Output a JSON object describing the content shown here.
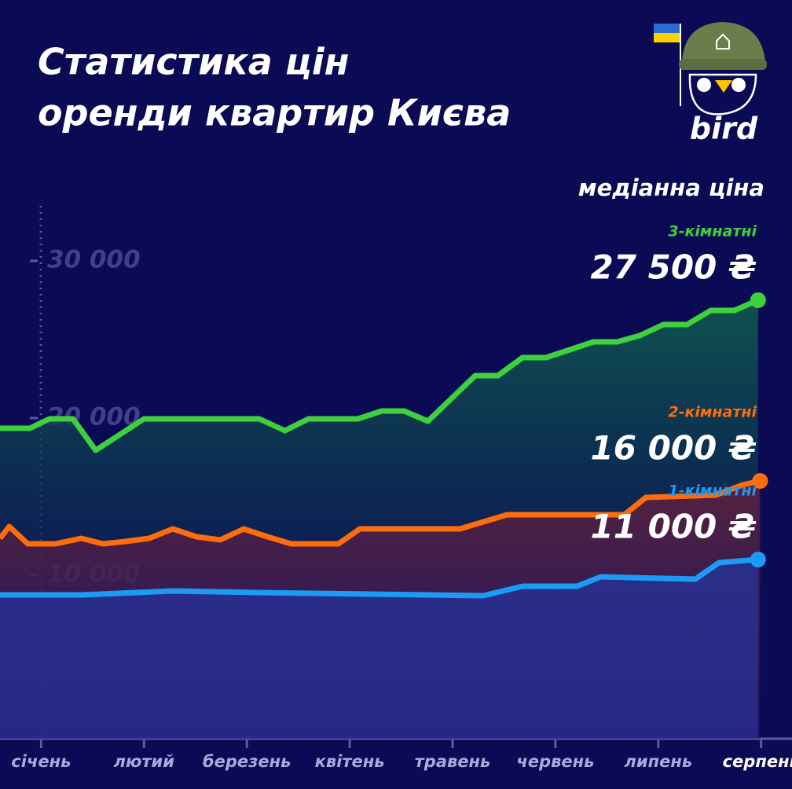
{
  "chart_data": {
    "type": "area-line",
    "title": [
      "Статистика цін",
      "оренди квартир Києва"
    ],
    "subtitle": "медіанна ціна",
    "logo": "bird",
    "xlim": [
      -0.4,
      7.3
    ],
    "xticks": [
      {
        "value": 0,
        "label": "січень"
      },
      {
        "value": 1,
        "label": "лютий"
      },
      {
        "value": 2,
        "label": "березень"
      },
      {
        "value": 3,
        "label": "квітень"
      },
      {
        "value": 4,
        "label": "травень"
      },
      {
        "value": 5,
        "label": "червень"
      },
      {
        "value": 6,
        "label": "липень"
      },
      {
        "value": 7,
        "label": "серпень"
      }
    ],
    "ylim": [
      -400,
      33500
    ],
    "yticks": [
      {
        "value": 10000,
        "label": "10 000"
      },
      {
        "value": 20000,
        "label": "20 000"
      },
      {
        "value": 30000,
        "label": "30 000"
      }
    ],
    "series": [
      {
        "name": "3-кімнатні",
        "color": "#3fd13c",
        "x": [
          -0.4,
          -0.11,
          0.08,
          0.31,
          0.53,
          1.0,
          2.12,
          2.37,
          2.6,
          3.08,
          3.31,
          3.53,
          3.76,
          4.22,
          4.44,
          4.68,
          4.91,
          5.37,
          5.6,
          5.82,
          6.05,
          6.28,
          6.51,
          6.74,
          6.97
        ],
        "values": [
          19350,
          19350,
          19950,
          19950,
          17950,
          19950,
          19950,
          19200,
          19950,
          19950,
          20450,
          20450,
          19800,
          22700,
          22700,
          23850,
          23850,
          24850,
          24850,
          25250,
          25950,
          25950,
          26850,
          26850,
          27500
        ],
        "value_labels": [
          null,
          null,
          null,
          null,
          null,
          null,
          null,
          null,
          null,
          null,
          null,
          null,
          null,
          null,
          null,
          null,
          null,
          null,
          null,
          null,
          null,
          null,
          null,
          null,
          "27 500 ₴"
        ]
      },
      {
        "name": "2-кімнатні",
        "color": "#ff6c0a",
        "x": [
          -0.4,
          -0.31,
          -0.13,
          0.14,
          0.39,
          0.6,
          0.82,
          1.05,
          1.28,
          1.51,
          1.74,
          1.97,
          2.2,
          2.43,
          2.89,
          3.1,
          4.07,
          4.53,
          5.67,
          5.88,
          6.56,
          6.82,
          6.99
        ],
        "values": [
          12350,
          13100,
          12000,
          12000,
          12350,
          12000,
          12150,
          12350,
          12950,
          12450,
          12250,
          12950,
          12450,
          12000,
          12000,
          12950,
          12950,
          13850,
          13850,
          14950,
          15100,
          15750,
          16000
        ],
        "value_labels": [
          null,
          null,
          null,
          null,
          null,
          null,
          null,
          null,
          null,
          null,
          null,
          null,
          null,
          null,
          null,
          null,
          null,
          null,
          null,
          null,
          null,
          null,
          "16 000 ₴"
        ]
      },
      {
        "name": "1-кімнатні",
        "color": "#1b9bf5",
        "x": [
          -0.4,
          0.4,
          1.28,
          2.12,
          4.3,
          4.68,
          5.21,
          5.44,
          6.36,
          6.59,
          6.97
        ],
        "values": [
          8750,
          8750,
          9000,
          8900,
          8700,
          9300,
          9300,
          9900,
          9750,
          10800,
          11000
        ],
        "value_labels": [
          null,
          null,
          null,
          null,
          null,
          null,
          null,
          null,
          null,
          null,
          "11 000 ₴"
        ]
      }
    ]
  }
}
